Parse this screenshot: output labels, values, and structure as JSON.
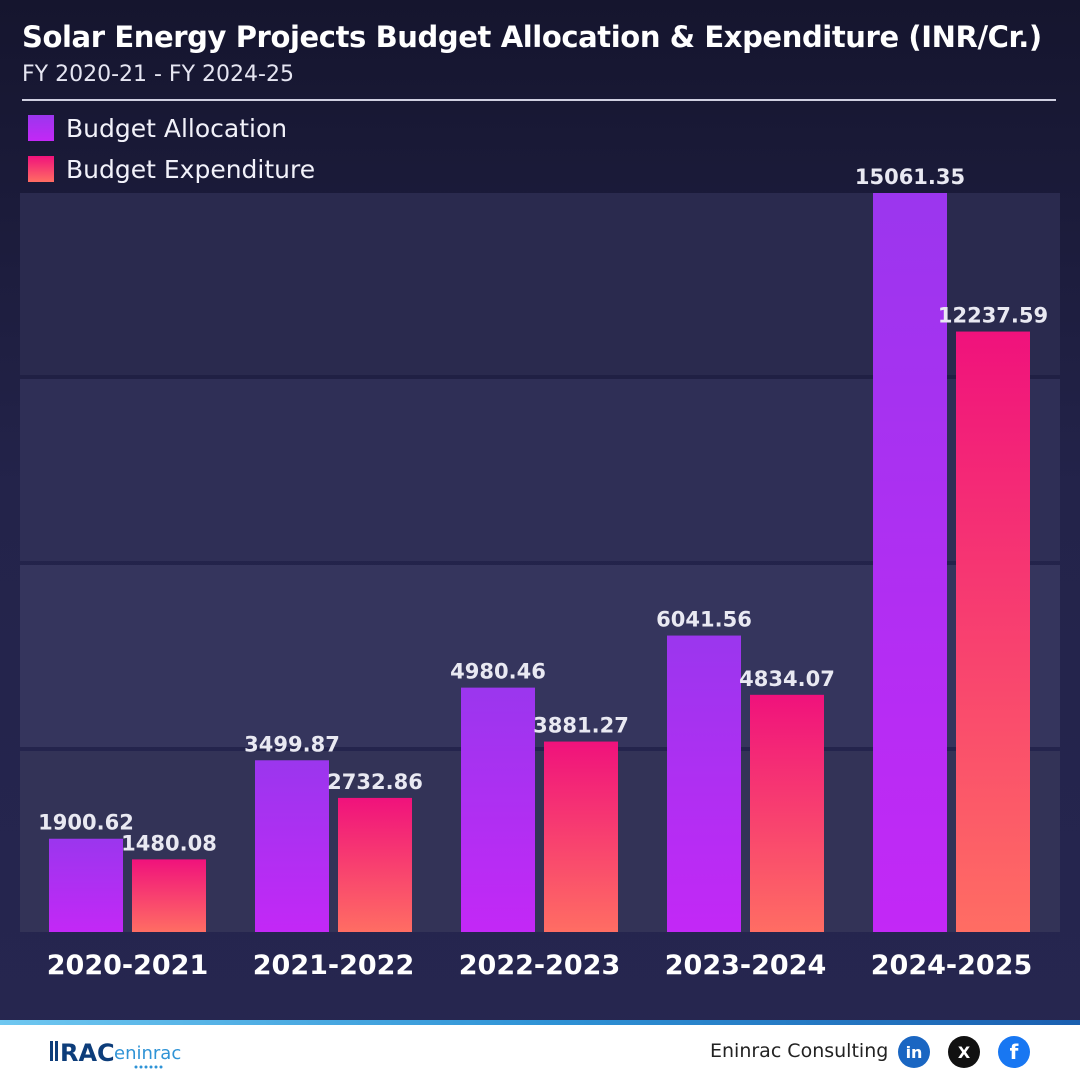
{
  "header": {
    "title": "Solar Energy Projects Budget Allocation & Expenditure (INR/Cr.)",
    "subtitle": "FY 2020-21 - FY 2024-25"
  },
  "legend": [
    {
      "label": "Budget Allocation",
      "color_top": "#9b36ee",
      "color_bottom": "#c328f6"
    },
    {
      "label": "Budget Expenditure",
      "color_top": "#f0127c",
      "color_bottom": "#ff6d63"
    }
  ],
  "chart_data": {
    "type": "bar",
    "categories": [
      "2020-2021",
      "2021-2022",
      "2022-2023",
      "2023-2024",
      "2024-2025"
    ],
    "series": [
      {
        "name": "Budget Allocation",
        "values": [
          1900.62,
          3499.87,
          4980.46,
          6041.56,
          15061.35
        ],
        "labels": [
          "1900.62",
          "3499.87",
          "4980.46",
          "6041.56",
          "15061.35"
        ]
      },
      {
        "name": "Budget Expenditure",
        "values": [
          1480.08,
          2732.86,
          3881.27,
          4834.07,
          12237.59
        ],
        "labels": [
          "1480.08",
          "2732.86",
          "3881.27",
          "4834.07",
          "12237.59"
        ]
      }
    ],
    "title": "Solar Energy Projects Budget Allocation & Expenditure (INR/Cr.)",
    "subtitle": "FY 2020-21 - FY 2024-25",
    "ylim": [
      0,
      15061.35
    ],
    "grid": true,
    "legend_position": "top-left"
  },
  "footer": {
    "logo_text": "eninrac",
    "company": "Eninrac Consulting",
    "social": [
      {
        "icon": "linkedin-icon",
        "glyph": "in",
        "color": "#1a66c2"
      },
      {
        "icon": "x-icon",
        "glyph": "X",
        "color": "#111111"
      },
      {
        "icon": "facebook-icon",
        "glyph": "f",
        "color": "#1877f2"
      }
    ]
  }
}
